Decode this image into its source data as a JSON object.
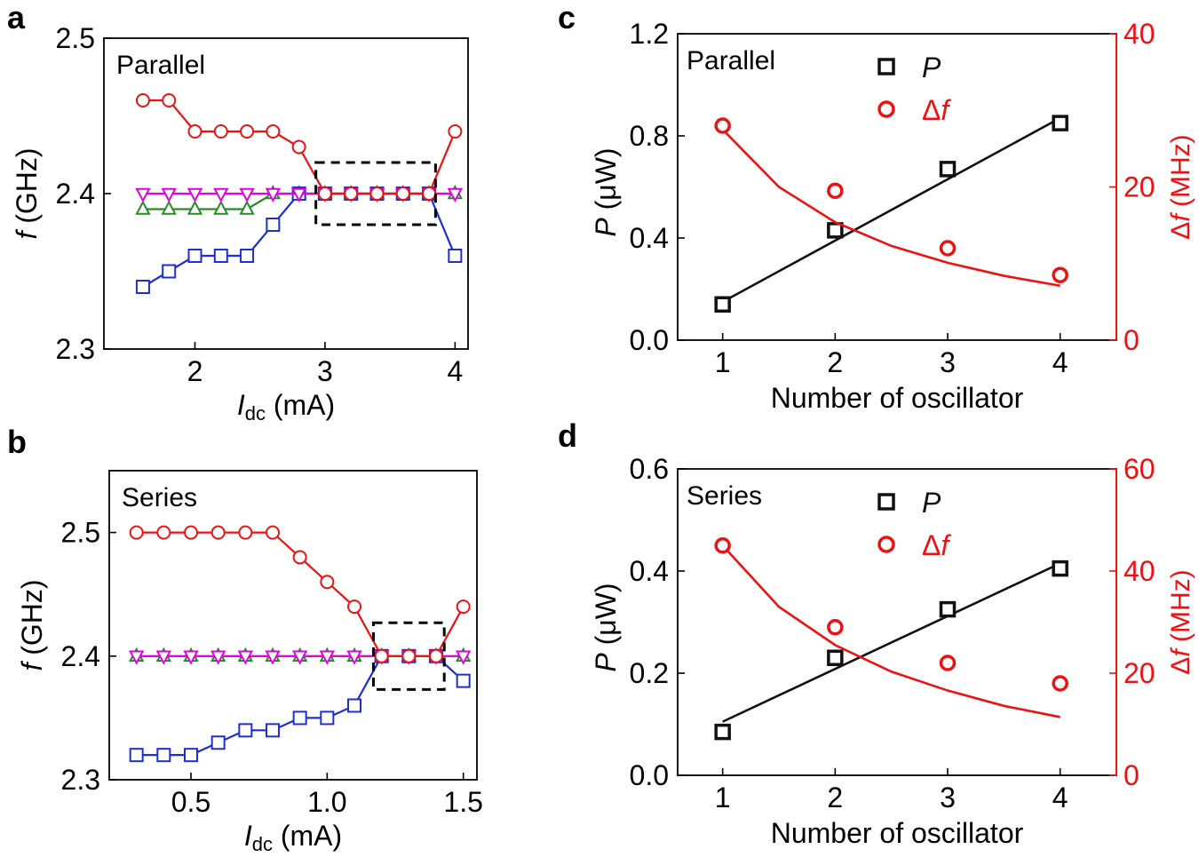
{
  "chart_data": [
    {
      "id": "a",
      "type": "line",
      "panel_label": "a",
      "annotation": "Parallel",
      "ylabel": "f (GHz)",
      "xlabel": {
        "main": "I",
        "sub": "dc",
        "rest": " (mA)"
      },
      "ylabel_parts": {
        "var": "f",
        "rest": " (GHz)"
      },
      "xlim": [
        1.3,
        4.1
      ],
      "ylim": [
        2.3,
        2.5
      ],
      "xticks": [
        2,
        3,
        4
      ],
      "xtick_labels": [
        "2",
        "3",
        "4"
      ],
      "yticks": [
        2.3,
        2.4,
        2.5
      ],
      "ytick_labels": [
        "2.3",
        "2.4",
        "2.5"
      ],
      "highlight_box": {
        "x": [
          2.93,
          3.85
        ],
        "y": [
          2.38,
          2.42
        ]
      },
      "series": [
        {
          "color": "#2a8a2a",
          "marker": "triangle-up",
          "x": [
            1.6,
            1.8,
            2.0,
            2.2,
            2.4,
            2.6,
            2.8,
            3.0,
            3.2,
            3.4,
            3.6,
            3.8,
            4.0
          ],
          "y": [
            2.39,
            2.39,
            2.39,
            2.39,
            2.39,
            2.4,
            2.4,
            2.4,
            2.4,
            2.4,
            2.4,
            2.4,
            2.4
          ]
        },
        {
          "color": "#1f2fd0",
          "marker": "square",
          "x": [
            1.6,
            1.8,
            2.0,
            2.2,
            2.4,
            2.6,
            2.8,
            3.0,
            3.2,
            3.4,
            3.6,
            3.8,
            4.0
          ],
          "y": [
            2.34,
            2.35,
            2.36,
            2.36,
            2.36,
            2.38,
            2.4,
            2.4,
            2.4,
            2.4,
            2.4,
            2.4,
            2.36
          ]
        },
        {
          "color": "#e000e0",
          "marker": "triangle-down",
          "x": [
            1.6,
            1.8,
            2.0,
            2.2,
            2.4,
            2.6,
            2.8,
            3.0,
            3.2,
            3.4,
            3.6,
            3.8,
            4.0
          ],
          "y": [
            2.4,
            2.4,
            2.4,
            2.4,
            2.4,
            2.4,
            2.4,
            2.4,
            2.4,
            2.4,
            2.4,
            2.4,
            2.4
          ]
        },
        {
          "color": "#ee1111",
          "marker": "circle",
          "x": [
            1.6,
            1.8,
            2.0,
            2.2,
            2.4,
            2.6,
            2.8,
            3.0,
            3.2,
            3.4,
            3.6,
            3.8,
            4.0
          ],
          "y": [
            2.46,
            2.46,
            2.44,
            2.44,
            2.44,
            2.44,
            2.43,
            2.4,
            2.4,
            2.4,
            2.4,
            2.4,
            2.44
          ]
        }
      ]
    },
    {
      "id": "b",
      "type": "line",
      "panel_label": "b",
      "annotation": "Series",
      "ylabel_parts": {
        "var": "f",
        "rest": " (GHz)"
      },
      "xlabel": {
        "main": "I",
        "sub": "dc",
        "rest": " (mA)"
      },
      "xlim": [
        0.2,
        1.55
      ],
      "ylim": [
        2.3,
        2.55
      ],
      "xticks": [
        0.5,
        1.0,
        1.5
      ],
      "xtick_labels": [
        "0.5",
        "1.0",
        "1.5"
      ],
      "yticks": [
        2.3,
        2.4,
        2.5
      ],
      "ytick_labels": [
        "2.3",
        "2.4",
        "2.5"
      ],
      "highlight_box": {
        "x": [
          1.17,
          1.43
        ],
        "y": [
          2.373,
          2.427
        ]
      },
      "series": [
        {
          "color": "#2a8a2a",
          "marker": "triangle-up",
          "x": [
            0.3,
            0.4,
            0.5,
            0.6,
            0.7,
            0.8,
            0.9,
            1.0,
            1.1,
            1.2,
            1.3,
            1.4,
            1.5
          ],
          "y": [
            2.4,
            2.4,
            2.4,
            2.4,
            2.4,
            2.4,
            2.4,
            2.4,
            2.4,
            2.4,
            2.4,
            2.4,
            2.4
          ]
        },
        {
          "color": "#1f2fd0",
          "marker": "square",
          "x": [
            0.3,
            0.4,
            0.5,
            0.6,
            0.7,
            0.8,
            0.9,
            1.0,
            1.1,
            1.2,
            1.3,
            1.4,
            1.5
          ],
          "y": [
            2.32,
            2.32,
            2.32,
            2.33,
            2.34,
            2.34,
            2.35,
            2.35,
            2.36,
            2.4,
            2.4,
            2.4,
            2.38
          ]
        },
        {
          "color": "#e000e0",
          "marker": "triangle-down",
          "x": [
            0.3,
            0.4,
            0.5,
            0.6,
            0.7,
            0.8,
            0.9,
            1.0,
            1.1,
            1.2,
            1.3,
            1.4,
            1.5
          ],
          "y": [
            2.4,
            2.4,
            2.4,
            2.4,
            2.4,
            2.4,
            2.4,
            2.4,
            2.4,
            2.4,
            2.4,
            2.4,
            2.4
          ]
        },
        {
          "color": "#ee1111",
          "marker": "circle",
          "x": [
            0.3,
            0.4,
            0.5,
            0.6,
            0.7,
            0.8,
            0.9,
            1.0,
            1.1,
            1.2,
            1.3,
            1.4,
            1.5
          ],
          "y": [
            2.5,
            2.5,
            2.5,
            2.5,
            2.5,
            2.5,
            2.48,
            2.46,
            2.44,
            2.4,
            2.4,
            2.4,
            2.44
          ]
        }
      ]
    },
    {
      "id": "c",
      "type": "scatter",
      "panel_label": "c",
      "annotation": "Parallel",
      "xlabel": "Number of oscillator",
      "ylabel_left": {
        "var": "P",
        "rest": " (μW)"
      },
      "ylabel_right": {
        "prefix": "Δ",
        "var": "f",
        "rest": " (MHz)"
      },
      "xlim": [
        0.6,
        4.5
      ],
      "ylim_left": [
        0,
        1.2
      ],
      "ylim_right": [
        0,
        40
      ],
      "xticks": [
        1,
        2,
        3,
        4
      ],
      "xtick_labels": [
        "1",
        "2",
        "3",
        "4"
      ],
      "yticks_left": [
        0,
        0.4,
        0.8,
        1.2
      ],
      "ytick_labels_left": [
        "0.0",
        "0.4",
        "0.8",
        "1.2"
      ],
      "yticks_right": [
        0,
        20,
        40
      ],
      "ytick_labels_right": [
        "0",
        "20",
        "40"
      ],
      "legend": {
        "position": "top",
        "entries": [
          {
            "marker": "square",
            "color": "#111111",
            "var": "P",
            "prefix": ""
          },
          {
            "marker": "circle",
            "color": "#ee1111",
            "var": "f",
            "prefix": "Δ"
          }
        ]
      },
      "P": {
        "color": "#111111",
        "x": [
          1,
          2,
          3,
          4
        ],
        "y": [
          0.14,
          0.43,
          0.67,
          0.85
        ],
        "fit": {
          "kind": "linear",
          "x": [
            1,
            4
          ],
          "y": [
            0.15,
            0.87
          ]
        }
      },
      "df": {
        "color": "#ee1111",
        "x": [
          1,
          2,
          3,
          4
        ],
        "y": [
          28,
          19.5,
          12,
          8.5
        ],
        "fit": {
          "kind": "curve",
          "x": [
            1,
            1.5,
            2,
            2.5,
            3,
            3.5,
            4
          ],
          "y": [
            27.5,
            20,
            15.4,
            12.3,
            10.1,
            8.4,
            7.1
          ]
        }
      }
    },
    {
      "id": "d",
      "type": "scatter",
      "panel_label": "d",
      "annotation": "Series",
      "xlabel": "Number of oscillator",
      "ylabel_left": {
        "var": "P",
        "rest": " (μW)"
      },
      "ylabel_right": {
        "prefix": "Δ",
        "var": "f",
        "rest": " (MHz)"
      },
      "xlim": [
        0.6,
        4.5
      ],
      "ylim_left": [
        0,
        0.6
      ],
      "ylim_right": [
        0,
        60
      ],
      "xticks": [
        1,
        2,
        3,
        4
      ],
      "xtick_labels": [
        "1",
        "2",
        "3",
        "4"
      ],
      "yticks_left": [
        0,
        0.2,
        0.4,
        0.6
      ],
      "ytick_labels_left": [
        "0.0",
        "0.2",
        "0.4",
        "0.6"
      ],
      "yticks_right": [
        0,
        20,
        40,
        60
      ],
      "ytick_labels_right": [
        "0",
        "20",
        "40",
        "60"
      ],
      "legend": {
        "position": "top",
        "entries": [
          {
            "marker": "square",
            "color": "#111111",
            "var": "P",
            "prefix": ""
          },
          {
            "marker": "circle",
            "color": "#ee1111",
            "var": "f",
            "prefix": "Δ"
          }
        ]
      },
      "P": {
        "color": "#111111",
        "x": [
          1,
          2,
          3,
          4
        ],
        "y": [
          0.085,
          0.23,
          0.325,
          0.405
        ],
        "fit": {
          "kind": "linear",
          "x": [
            1,
            4
          ],
          "y": [
            0.105,
            0.415
          ]
        }
      },
      "df": {
        "color": "#ee1111",
        "x": [
          1,
          2,
          3,
          4
        ],
        "y": [
          45,
          29,
          22,
          18
        ],
        "fit": {
          "kind": "curve",
          "x": [
            1,
            1.5,
            2,
            2.5,
            3,
            3.5,
            4
          ],
          "y": [
            45,
            33,
            25.5,
            20.3,
            16.6,
            13.6,
            11.4
          ]
        }
      }
    }
  ]
}
